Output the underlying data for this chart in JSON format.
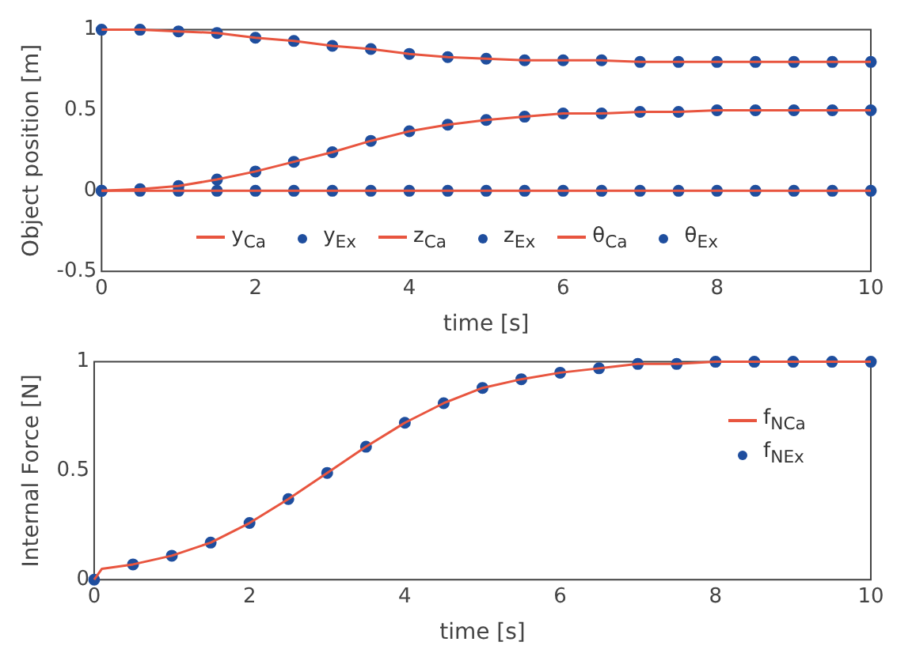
{
  "chart_data": [
    {
      "type": "line",
      "xlabel": "time [s]",
      "ylabel": "Object position [m]",
      "x": [
        0,
        0.5,
        1,
        1.5,
        2,
        2.5,
        3,
        3.5,
        4,
        4.5,
        5,
        5.5,
        6,
        6.5,
        7,
        7.5,
        8,
        8.5,
        9,
        9.5,
        10
      ],
      "xlim": [
        0,
        10
      ],
      "xticks": [
        0,
        2,
        4,
        6,
        8,
        10
      ],
      "ylim": [
        -0.5,
        1
      ],
      "yticks": [
        -0.5,
        0,
        0.5,
        1
      ],
      "legend": "bottom",
      "series": [
        {
          "name": "y$_{Ca}$",
          "type": "line",
          "color": "#e8553f",
          "marker": "none",
          "values": [
            0,
            0.01,
            0.03,
            0.07,
            0.12,
            0.18,
            0.24,
            0.31,
            0.37,
            0.41,
            0.44,
            0.46,
            0.48,
            0.48,
            0.49,
            0.49,
            0.5,
            0.5,
            0.5,
            0.5,
            0.5
          ]
        },
        {
          "name": "y$_{Ex}$",
          "type": "scatter",
          "color": "#1f4e9e",
          "marker": "circle",
          "values": [
            0,
            0.01,
            0.03,
            0.07,
            0.12,
            0.18,
            0.24,
            0.31,
            0.37,
            0.41,
            0.44,
            0.46,
            0.48,
            0.48,
            0.49,
            0.49,
            0.5,
            0.5,
            0.5,
            0.5,
            0.5
          ]
        },
        {
          "name": "z$_{Ca}$",
          "type": "line",
          "color": "#e8553f",
          "marker": "none",
          "values": [
            1,
            1,
            0.99,
            0.98,
            0.95,
            0.93,
            0.9,
            0.88,
            0.85,
            0.83,
            0.82,
            0.81,
            0.81,
            0.81,
            0.8,
            0.8,
            0.8,
            0.8,
            0.8,
            0.8,
            0.8
          ]
        },
        {
          "name": "z$_{Ex}$",
          "type": "scatter",
          "color": "#1f4e9e",
          "marker": "circle",
          "values": [
            1,
            1,
            0.99,
            0.98,
            0.95,
            0.93,
            0.9,
            0.88,
            0.85,
            0.83,
            0.82,
            0.81,
            0.81,
            0.81,
            0.8,
            0.8,
            0.8,
            0.8,
            0.8,
            0.8,
            0.8
          ]
        },
        {
          "name": "θ$_{Ca}$",
          "type": "line",
          "color": "#e8553f",
          "marker": "none",
          "values": [
            0,
            0,
            0,
            0,
            0,
            0,
            0,
            0,
            0,
            0,
            0,
            0,
            0,
            0,
            0,
            0,
            0,
            0,
            0,
            0,
            0
          ]
        },
        {
          "name": "θ$_{Ex}$",
          "type": "scatter",
          "color": "#1f4e9e",
          "marker": "circle",
          "values": [
            0,
            0,
            0,
            0,
            0,
            0,
            0,
            0,
            0,
            0,
            0,
            0,
            0,
            0,
            0,
            0,
            0,
            0,
            0,
            0,
            0
          ]
        }
      ]
    },
    {
      "type": "line",
      "xlabel": "time [s]",
      "ylabel": "Internal Force [N]",
      "x": [
        0,
        0.5,
        1,
        1.5,
        2,
        2.5,
        3,
        3.5,
        4,
        4.5,
        5,
        5.5,
        6,
        6.5,
        7,
        7.5,
        8,
        8.5,
        9,
        9.5,
        10
      ],
      "xlim": [
        0,
        10
      ],
      "xticks": [
        0,
        2,
        4,
        6,
        8,
        10
      ],
      "ylim": [
        0,
        1
      ],
      "yticks": [
        0,
        0.5,
        1
      ],
      "legend": "right",
      "series": [
        {
          "name": "f$_{N}$$_{Ca}$",
          "type": "line",
          "color": "#e8553f",
          "marker": "none",
          "x": [
            0,
            0.1,
            0.5,
            1,
            1.5,
            2,
            2.5,
            3,
            3.5,
            4,
            4.5,
            5,
            5.5,
            6,
            6.5,
            7,
            7.5,
            8,
            8.5,
            9,
            9.5,
            10
          ],
          "values": [
            0,
            0.05,
            0.07,
            0.11,
            0.17,
            0.26,
            0.37,
            0.49,
            0.61,
            0.72,
            0.81,
            0.88,
            0.92,
            0.95,
            0.97,
            0.99,
            0.99,
            1,
            1,
            1,
            1,
            1
          ]
        },
        {
          "name": "f$_{N}$$_{Ex}$",
          "type": "scatter",
          "color": "#1f4e9e",
          "marker": "circle",
          "values": [
            0,
            0.07,
            0.11,
            0.17,
            0.26,
            0.37,
            0.49,
            0.61,
            0.72,
            0.81,
            0.88,
            0.92,
            0.95,
            0.97,
            0.99,
            0.99,
            1,
            1,
            1,
            1,
            1
          ]
        }
      ]
    }
  ]
}
